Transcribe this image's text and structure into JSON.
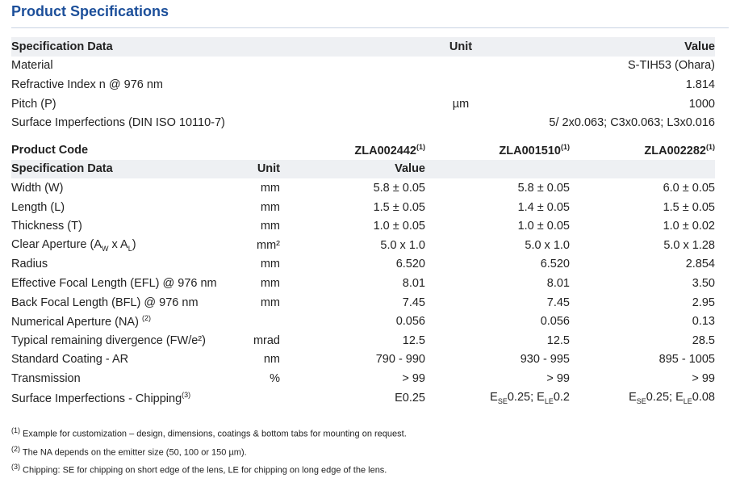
{
  "header": {
    "title": "Product Specifications"
  },
  "table1": {
    "columns": [
      "Specification Data",
      "Unit",
      "Value"
    ],
    "rows": [
      [
        "Material",
        null,
        "S-TIH53 (Ohara)"
      ],
      [
        "Refractive Index n @ 976 nm",
        null,
        "1.814"
      ],
      [
        "Pitch (P)",
        "µm",
        "1000"
      ],
      [
        "Surface Imperfections (DIN ISO 10110-7)",
        null,
        "5/ 2x0.063; C3x0.063; L3x0.016"
      ]
    ]
  },
  "table2": {
    "product_code_label": "Product Code",
    "product_codes": [
      [
        "ZLA002442",
        {
          "sup": "(1)"
        }
      ],
      [
        "ZLA001510",
        {
          "sup": "(1)"
        }
      ],
      [
        "ZLA002282",
        {
          "sup": "(1)"
        }
      ]
    ],
    "columns": [
      "Specification Data",
      "Unit",
      "Value"
    ],
    "rows": [
      [
        "Width (W)",
        "mm",
        "5.8 ± 0.05",
        "5.8 ± 0.05",
        "6.0 ± 0.05"
      ],
      [
        "Length (L)",
        "mm",
        "1.5 ± 0.05",
        "1.4 ± 0.05",
        "1.5 ± 0.05"
      ],
      [
        "Thickness (T)",
        "mm",
        "1.0 ± 0.05",
        "1.0 ± 0.05",
        "1.0 ± 0.02"
      ],
      [
        [
          "Clear Aperture (A",
          {
            "sub": "W"
          },
          " x A",
          {
            "sub": "L"
          },
          ")"
        ],
        "mm²",
        "5.0 x 1.0",
        "5.0 x 1.0",
        "5.0 x 1.28"
      ],
      [
        "Radius",
        "mm",
        "6.520",
        "6.520",
        "2.854"
      ],
      [
        "Effective Focal Length (EFL) @ 976 nm",
        "mm",
        "8.01",
        "8.01",
        "3.50"
      ],
      [
        "Back Focal Length (BFL) @ 976 nm",
        "mm",
        "7.45",
        "7.45",
        "2.95"
      ],
      [
        [
          "Numerical Aperture (NA) ",
          {
            "sup": "(2)"
          }
        ],
        null,
        "0.056",
        "0.056",
        "0.13"
      ],
      [
        "Typical remaining divergence (FW/e²)",
        "mrad",
        "12.5",
        "12.5",
        "28.5"
      ],
      [
        "Standard Coating - AR",
        "nm",
        "790 - 990",
        "930 - 995",
        "895 - 1005"
      ],
      [
        "Transmission",
        "%",
        "> 99",
        "> 99",
        "> 99"
      ],
      [
        [
          "Surface Imperfections  - Chipping",
          {
            "sup": "(3)"
          }
        ],
        null,
        "E0.25",
        [
          "E",
          {
            "sub": "SE"
          },
          "0.25; E",
          {
            "sub": "LE"
          },
          "0.2"
        ],
        [
          "E",
          {
            "sub": "SE"
          },
          "0.25; E",
          {
            "sub": "LE"
          },
          "0.08"
        ]
      ]
    ]
  },
  "footnotes": [
    [
      {
        "sup": "(1)"
      },
      " Example for customization – design, dimensions, coatings & bottom tabs for mounting on request."
    ],
    [
      {
        "sup": "(2)"
      },
      " The NA depends on the emitter size (50, 100 or 150 µm)."
    ],
    [
      {
        "sup": "(3)"
      },
      " Chipping: SE for chipping on short edge of the lens, LE for chipping on long edge of the lens."
    ]
  ]
}
